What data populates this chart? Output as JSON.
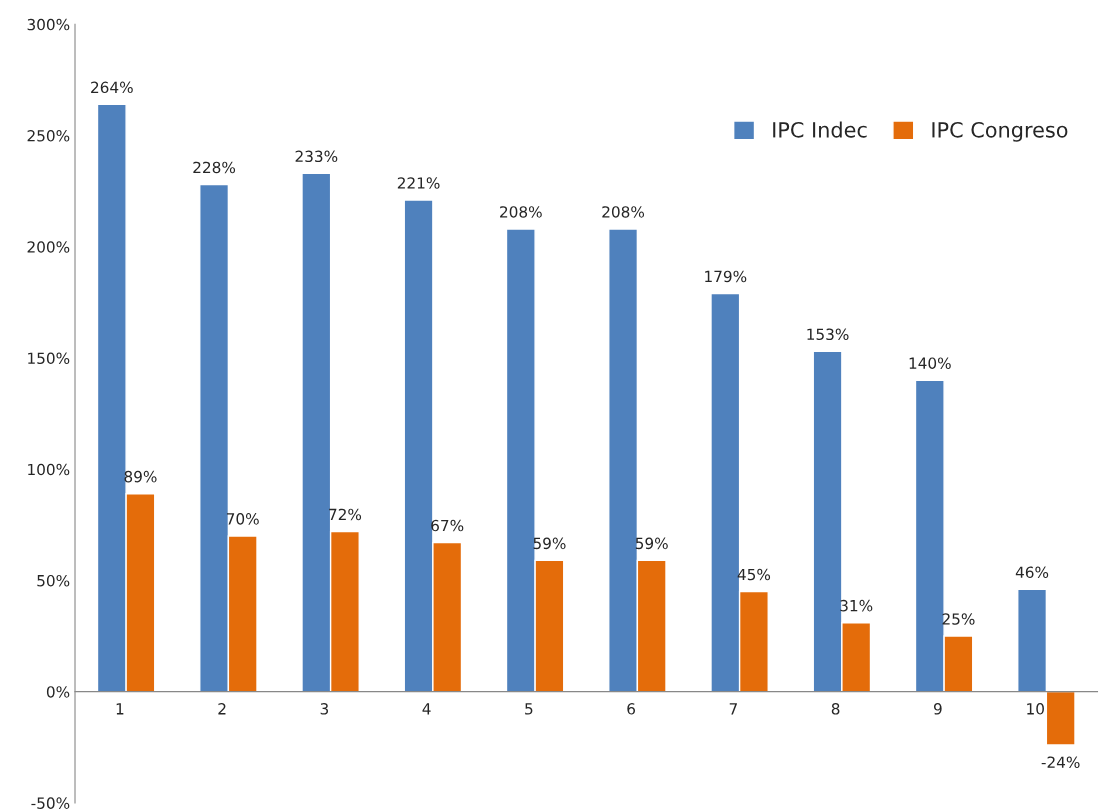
{
  "chart_data": {
    "type": "bar",
    "categories": [
      "1",
      "2",
      "3",
      "4",
      "5",
      "6",
      "7",
      "8",
      "9",
      "10"
    ],
    "series": [
      {
        "name": "IPC Indec",
        "color": "#4f81bd",
        "values": [
          264,
          228,
          233,
          221,
          208,
          208,
          179,
          153,
          140,
          46
        ],
        "value_labels": [
          "264%",
          "228%",
          "233%",
          "221%",
          "208%",
          "208%",
          "179%",
          "153%",
          "140%",
          "46%"
        ]
      },
      {
        "name": "IPC Congreso",
        "color": "#e46c0a",
        "values": [
          89,
          70,
          72,
          67,
          59,
          59,
          45,
          31,
          25,
          -24
        ],
        "value_labels": [
          "89%",
          "70%",
          "72%",
          "67%",
          "59%",
          "59%",
          "45%",
          "31%",
          "25%",
          "-24%"
        ]
      }
    ],
    "ylim": [
      -50,
      300
    ],
    "yticks": [
      {
        "value": -50,
        "label": "-50%"
      },
      {
        "value": 0,
        "label": "0%"
      },
      {
        "value": 50,
        "label": "50%"
      },
      {
        "value": 100,
        "label": "100%"
      },
      {
        "value": 150,
        "label": "150%"
      },
      {
        "value": 200,
        "label": "200%"
      },
      {
        "value": 250,
        "label": "250%"
      },
      {
        "value": 300,
        "label": "300%"
      }
    ],
    "grid": false,
    "legend": "top right"
  }
}
